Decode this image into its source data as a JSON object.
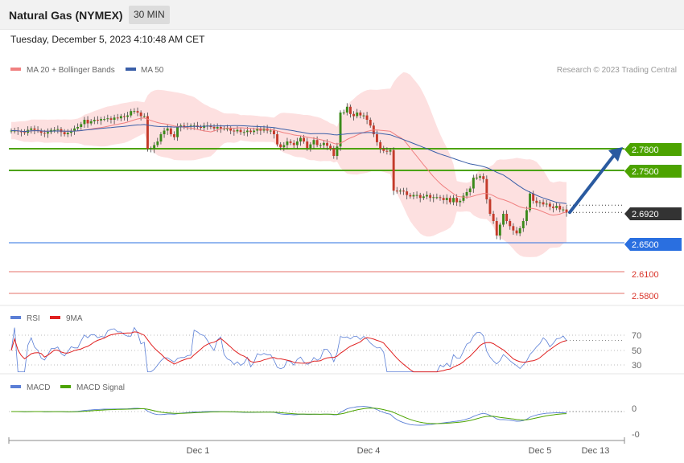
{
  "header": {
    "title": "Natural Gas (NYMEX)",
    "timeframe": "30 MIN",
    "datetime": "Tuesday, December 5, 2023 4:10:48 AM CET"
  },
  "main": {
    "credit": "Research © 2023 Trading Central",
    "legend": [
      {
        "label": "MA 20 + Bollinger Bands",
        "color": "#f08080"
      },
      {
        "label": "MA 50",
        "color": "#3a5fa8"
      }
    ],
    "levels": [
      {
        "value": 2.78,
        "label": "2.7800",
        "kind": "resistance",
        "color": "#4ca300",
        "tag": true
      },
      {
        "value": 2.75,
        "label": "2.7500",
        "kind": "resistance",
        "color": "#4ca300",
        "tag": true
      },
      {
        "value": 2.692,
        "label": "2.6920",
        "kind": "last",
        "color": "#333333",
        "tag": true
      },
      {
        "value": 2.65,
        "label": "2.6500",
        "kind": "pivot",
        "color": "#2a6fe0",
        "tag": true
      },
      {
        "value": 2.61,
        "label": "2.6100",
        "kind": "support",
        "color": "#d9352b",
        "tag": false
      },
      {
        "value": 2.58,
        "label": "2.5800",
        "kind": "support",
        "color": "#d9352b",
        "tag": false
      }
    ],
    "forecast_arrow": {
      "from": 2.692,
      "to": 2.78,
      "color": "#2a5aa0"
    }
  },
  "rsi": {
    "legend": [
      {
        "label": "RSI",
        "color": "#5b7fd6"
      },
      {
        "label": "9MA",
        "color": "#e02020"
      }
    ],
    "ticks": [
      "70",
      "50",
      "30"
    ]
  },
  "macd": {
    "legend": [
      {
        "label": "MACD",
        "color": "#5b7fd6"
      },
      {
        "label": "MACD Signal",
        "color": "#4ca300"
      }
    ],
    "ticks": [
      "0",
      "-0"
    ]
  },
  "xaxis": {
    "labels": [
      "Dec 1",
      "Dec 4",
      "Dec 5",
      "Dec 13"
    ]
  },
  "chart_data": {
    "type": "candlestick",
    "title": "Natural Gas (NYMEX)",
    "timeframe": "30 MIN",
    "last": 2.692,
    "closes": [
      2.805,
      2.805,
      2.804,
      2.803,
      2.802,
      2.806,
      2.808,
      2.806,
      2.805,
      2.802,
      2.801,
      2.803,
      2.806,
      2.806,
      2.807,
      2.803,
      2.8,
      2.802,
      2.805,
      2.808,
      2.81,
      2.814,
      2.82,
      2.815,
      2.818,
      2.82,
      2.819,
      2.821,
      2.821,
      2.822,
      2.82,
      2.823,
      2.822,
      2.825,
      2.824,
      2.826,
      2.832,
      2.832,
      2.83,
      2.825,
      2.825,
      2.78,
      2.78,
      2.785,
      2.79,
      2.8,
      2.805,
      2.808,
      2.8,
      2.796,
      2.81,
      2.812,
      2.81,
      2.811,
      2.812,
      2.812,
      2.81,
      2.809,
      2.812,
      2.812,
      2.81,
      2.808,
      2.81,
      2.808,
      2.808,
      2.808,
      2.805,
      2.804,
      2.806,
      2.803,
      2.803,
      2.805,
      2.803,
      2.805,
      2.808,
      2.805,
      2.808,
      2.805,
      2.805,
      2.8,
      2.786,
      2.782,
      2.785,
      2.79,
      2.788,
      2.785,
      2.79,
      2.795,
      2.79,
      2.781,
      2.786,
      2.792,
      2.785,
      2.785,
      2.788,
      2.784,
      2.78,
      2.77,
      2.783,
      2.83,
      2.83,
      2.838,
      2.828,
      2.825,
      2.83,
      2.826,
      2.826,
      2.82,
      2.812,
      2.8,
      2.789,
      2.78,
      2.777,
      2.776,
      2.778,
      2.722,
      2.721,
      2.722,
      2.721,
      2.716,
      2.714,
      2.716,
      2.716,
      2.712,
      2.714,
      2.716,
      2.712,
      2.713,
      2.713,
      2.712,
      2.709,
      2.712,
      2.706,
      2.712,
      2.706,
      2.708,
      2.715,
      2.72,
      2.725,
      2.74,
      2.74,
      2.742,
      2.738,
      2.71,
      2.69,
      2.68,
      2.66,
      2.675,
      2.69,
      2.68,
      2.673,
      2.667,
      2.663,
      2.67,
      2.68,
      2.695,
      2.718,
      2.708,
      2.705,
      2.706,
      2.703,
      2.704,
      2.7,
      2.698,
      2.701,
      2.696,
      2.696,
      2.692
    ],
    "ma20_bollinger": "shown",
    "ma50": "shown",
    "rsi_scale": [
      30,
      50,
      70
    ],
    "resistance": [
      2.78,
      2.75
    ],
    "pivot": 2.65,
    "support": [
      2.61,
      2.58
    ],
    "x_labels": [
      "Dec 1",
      "Dec 4",
      "Dec 5",
      "Dec 13"
    ],
    "grid": false,
    "legend_position": "top-left"
  }
}
